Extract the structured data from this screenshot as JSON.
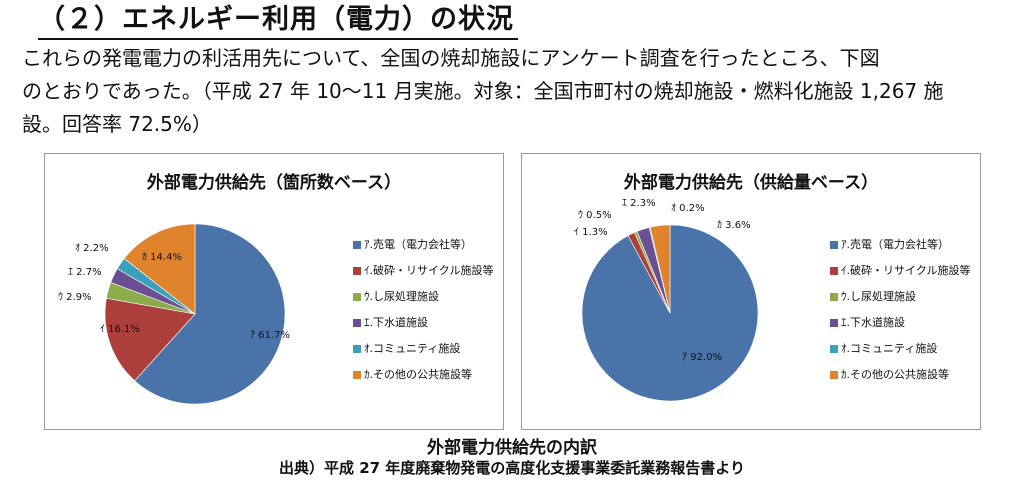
{
  "heading": "（２）エネルギー利用（電力）の状況",
  "paragraph": [
    "これらの発電電力の利活用先について、全国の焼却施設にアンケート調査を行ったところ、下図",
    "のとおりであった。（平成 27 年 10〜11 月実施。対象：全国市町村の焼却施設・燃料化施設 1,267 施",
    "設。回答率 72.5%）"
  ],
  "caption": "外部電力供給先の内訳",
  "source": "出典）平成 27 年度廃棄物発電の高度化支援事業委託業務報告書より",
  "chart_data": [
    {
      "type": "pie",
      "title": "外部電力供給先（箇所数ベース）",
      "legend_position": "right",
      "slices": [
        {
          "label": "ｱ.売電（電力会社等）",
          "short": "ｱ",
          "value": 61.7,
          "text": "61.7%",
          "color": "#4a74a9"
        },
        {
          "label": "ｲ.破砕・リサイクル施設等",
          "short": "ｲ",
          "value": 16.1,
          "text": "16.1%",
          "color": "#ac3f3c"
        },
        {
          "label": "ｳ.し尿処理施設",
          "short": "ｳ",
          "value": 2.9,
          "text": "2.9%",
          "color": "#8cab4a"
        },
        {
          "label": "ｴ.下水道施設",
          "short": "ｴ",
          "value": 2.7,
          "text": "2.7%",
          "color": "#6b4f93"
        },
        {
          "label": "ｵ.コミュニティ施設",
          "short": "ｵ",
          "value": 2.2,
          "text": "2.2%",
          "color": "#3aa0bb"
        },
        {
          "label": "ｶ.その他の公共施設等",
          "short": "ｶ",
          "value": 14.4,
          "text": "14.4%",
          "color": "#e0832d"
        }
      ]
    },
    {
      "type": "pie",
      "title": "外部電力供給先（供給量ベース）",
      "legend_position": "right",
      "slices": [
        {
          "label": "ｱ.売電（電力会社等）",
          "short": "ｱ",
          "value": 92.0,
          "text": "92.0%",
          "color": "#4a74a9"
        },
        {
          "label": "ｲ.破砕・リサイクル施設等",
          "short": "ｲ",
          "value": 1.3,
          "text": "1.3%",
          "color": "#ac3f3c"
        },
        {
          "label": "ｳ.し尿処理施設",
          "short": "ｳ",
          "value": 0.5,
          "text": "0.5%",
          "color": "#8cab4a"
        },
        {
          "label": "ｴ.下水道施設",
          "short": "ｴ",
          "value": 2.3,
          "text": "2.3%",
          "color": "#6b4f93"
        },
        {
          "label": "ｵ.コミュニティ施設",
          "short": "ｵ",
          "value": 0.2,
          "text": "0.2%",
          "color": "#3aa0bb"
        },
        {
          "label": "ｶ.その他の公共施設等",
          "short": "ｶ",
          "value": 3.6,
          "text": "3.6%",
          "color": "#e0832d"
        }
      ]
    }
  ]
}
